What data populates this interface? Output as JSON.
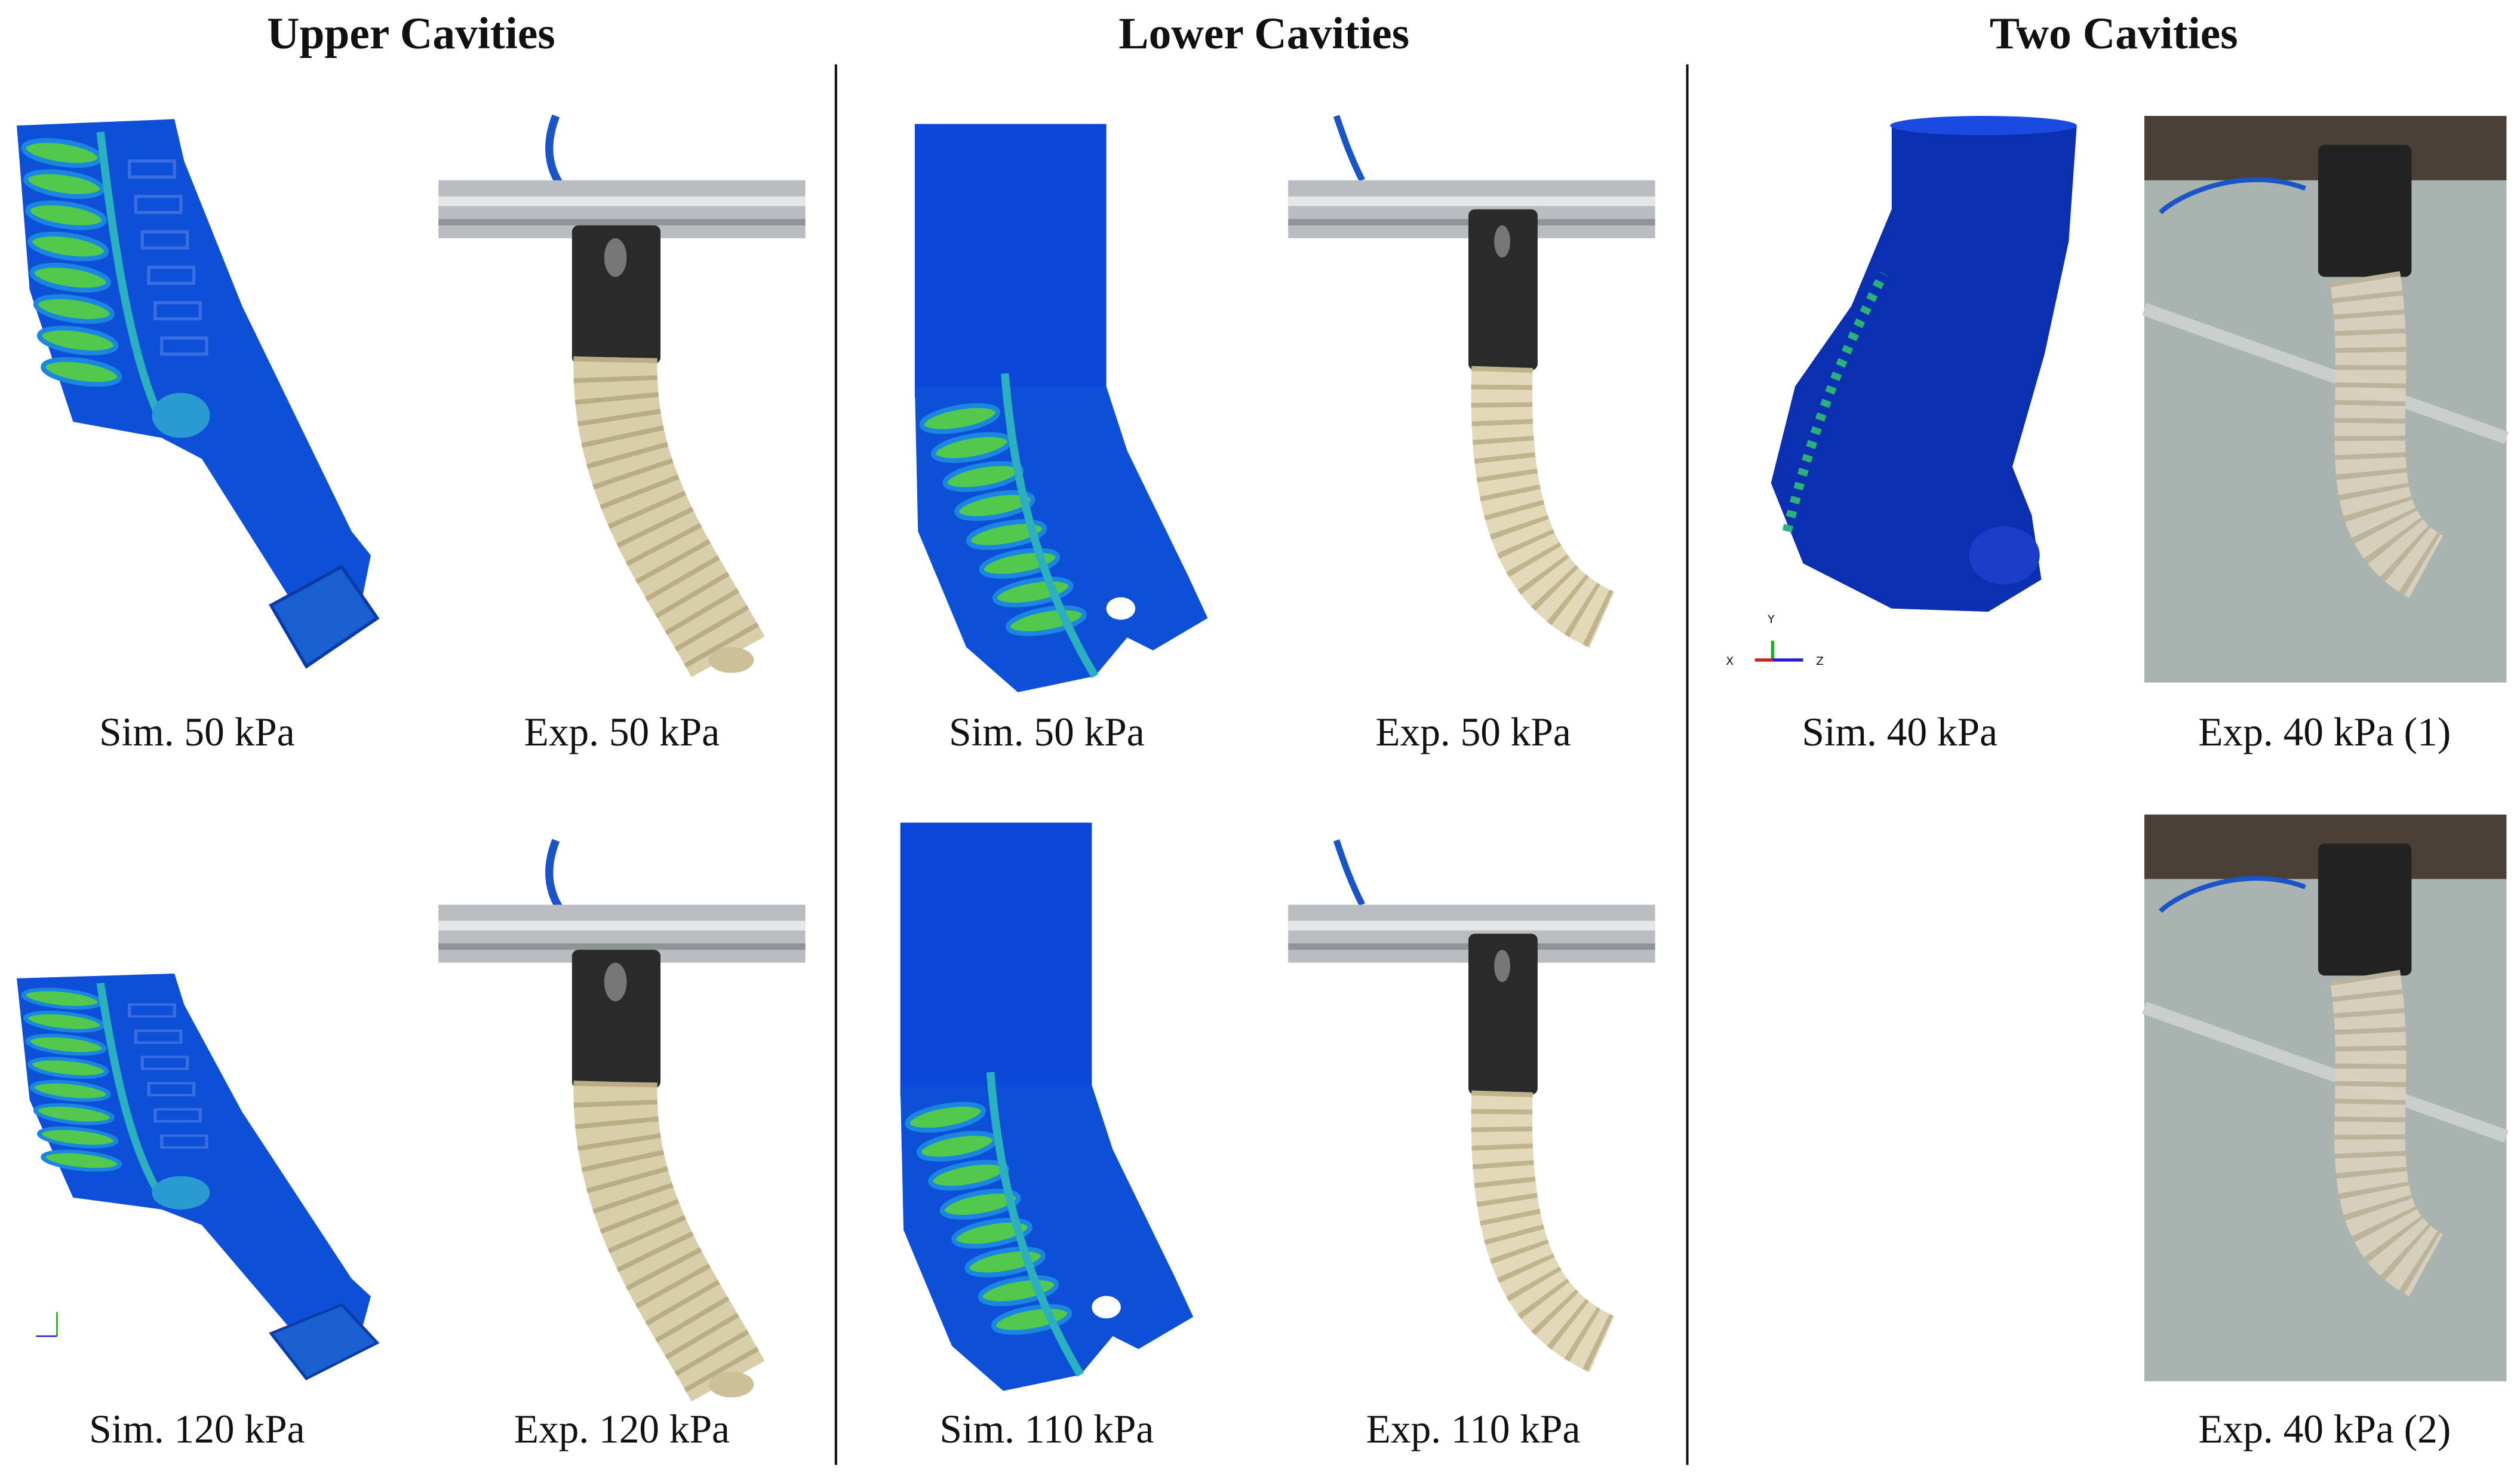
{
  "columns": [
    {
      "title": "Upper Cavities",
      "panels": [
        {
          "caption": "Sim. 50 kPa"
        },
        {
          "caption": "Exp. 50 kPa"
        },
        {
          "caption": "Sim. 120 kPa"
        },
        {
          "caption": "Exp. 120 kPa"
        }
      ]
    },
    {
      "title": "Lower Cavities",
      "panels": [
        {
          "caption": "Sim. 50 kPa"
        },
        {
          "caption": "Exp. 50 kPa"
        },
        {
          "caption": "Sim. 110 kPa"
        },
        {
          "caption": "Exp. 110 kPa"
        }
      ]
    },
    {
      "title": "Two Cavities",
      "panels": [
        {
          "caption": "Sim. 40 kPa",
          "axis_labels": [
            "Y",
            "X",
            "Z"
          ]
        },
        {
          "caption": "Exp. 40 kPa (1)"
        },
        {
          "caption": "Exp. 40 kPa (2)"
        }
      ]
    }
  ]
}
